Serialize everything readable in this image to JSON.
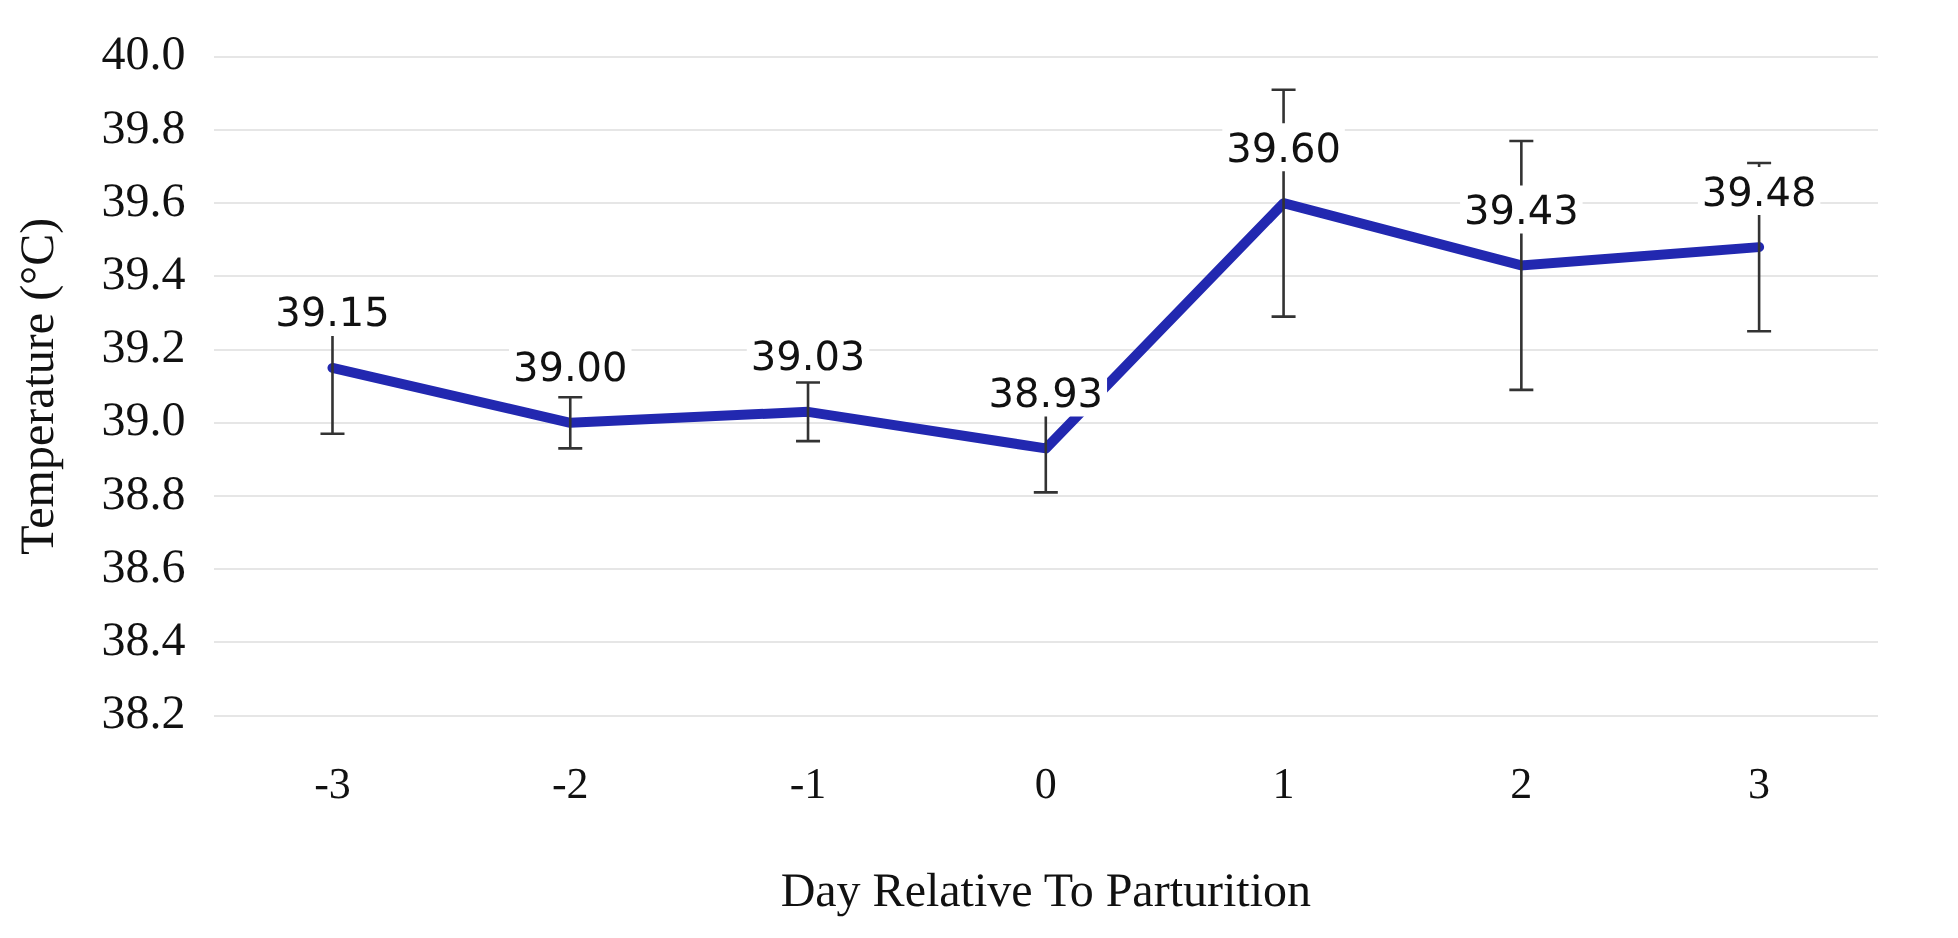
{
  "chart_data": {
    "type": "line",
    "xlabel": "Day Relative To Parturition",
    "ylabel": "Temperature (°C)",
    "categories": [
      "-3",
      "-2",
      "-1",
      "0",
      "1",
      "2",
      "3"
    ],
    "series": [
      {
        "color": "#2228b0",
        "values": [
          39.15,
          39.0,
          39.03,
          38.93,
          39.6,
          39.43,
          39.48
        ],
        "errors": [
          0.18,
          0.07,
          0.08,
          0.12,
          0.31,
          0.34,
          0.23
        ],
        "value_labels": [
          "39.15",
          "39.00",
          "39.03",
          "38.93",
          "39.60",
          "39.43",
          "39.48"
        ]
      }
    ],
    "ylim": [
      38.2,
      40.0
    ],
    "yticks": [
      {
        "value": 38.2,
        "label": "38.2"
      },
      {
        "value": 38.4,
        "label": "38.4"
      },
      {
        "value": 38.6,
        "label": "38.6"
      },
      {
        "value": 38.8,
        "label": "38.8"
      },
      {
        "value": 39.0,
        "label": "39.0"
      },
      {
        "value": 39.2,
        "label": "39.2"
      },
      {
        "value": 39.4,
        "label": "39.4"
      },
      {
        "value": 39.6,
        "label": "39.6"
      },
      {
        "value": 39.8,
        "label": "39.8"
      },
      {
        "value": 40.0,
        "label": "40.0"
      }
    ],
    "grid": "y",
    "legend": false,
    "marker": "none",
    "line_style": "solid"
  }
}
